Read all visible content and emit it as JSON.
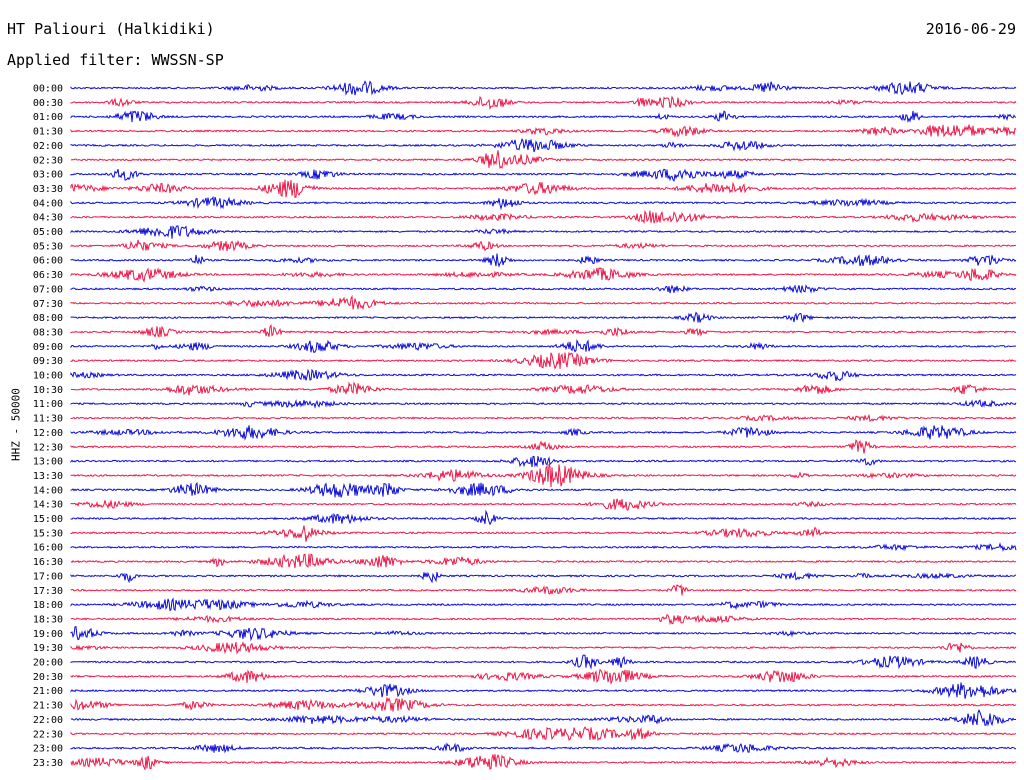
{
  "header": {
    "station": "HT Paliouri (Halkidiki)",
    "date": "2016-06-29",
    "filter": "Applied filter: WWSSN-SP"
  },
  "axis": {
    "ylabel": "HHZ - 50000"
  },
  "colors": {
    "trace_a": "#0a0adb",
    "trace_b": "#ee1848",
    "background": "#ffffff"
  },
  "rows": [
    "00:00",
    "00:30",
    "01:00",
    "01:30",
    "02:00",
    "02:30",
    "03:00",
    "03:30",
    "04:00",
    "04:30",
    "05:00",
    "05:30",
    "06:00",
    "06:30",
    "07:00",
    "07:30",
    "08:00",
    "08:30",
    "09:00",
    "09:30",
    "10:00",
    "10:30",
    "11:00",
    "11:30",
    "12:00",
    "12:30",
    "13:00",
    "13:30",
    "14:00",
    "14:30",
    "15:00",
    "15:30",
    "16:00",
    "16:30",
    "17:00",
    "17:30",
    "18:00",
    "18:30",
    "19:00",
    "19:30",
    "20:00",
    "20:30",
    "21:00",
    "21:30",
    "22:00",
    "22:30",
    "23:00",
    "23:30"
  ]
}
